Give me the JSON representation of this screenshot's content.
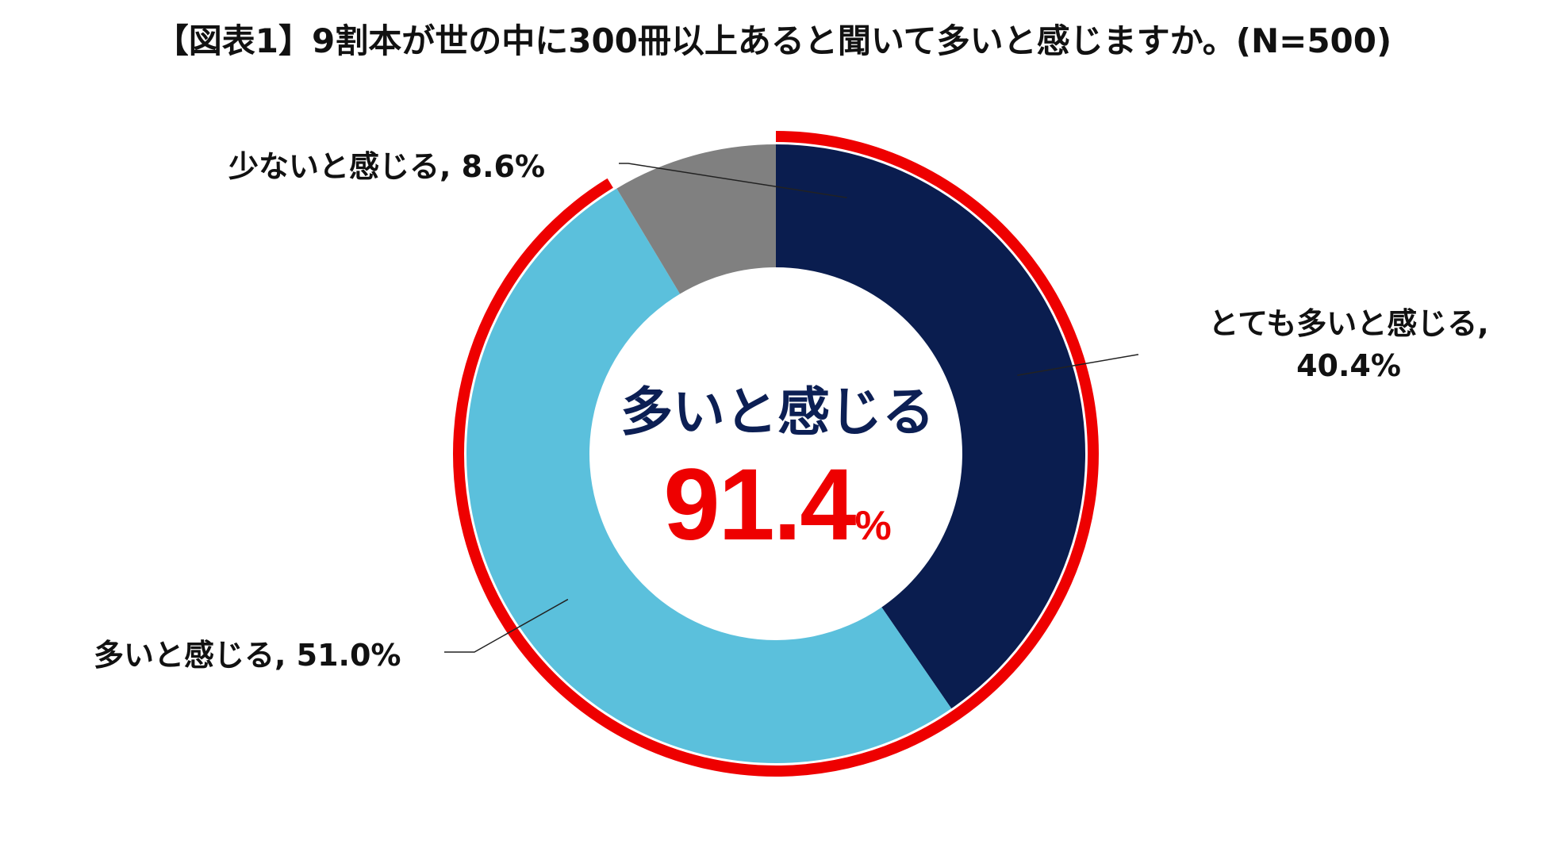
{
  "chart_data": {
    "type": "pie",
    "title": "【図表1】9割本が世の中に300冊以上あると聞いて多いと感じますか。(N=500)",
    "slices": [
      {
        "name": "とても多いと感じる",
        "label_line1": "とても多いと感じる,",
        "label_line2": "40.4%",
        "value": 40.4,
        "color": "#0a1d4f"
      },
      {
        "name": "多いと感じる",
        "label": "多いと感じる, 51.0%",
        "value": 51.0,
        "color": "#5bc0dc"
      },
      {
        "name": "少ないと感じる",
        "label": "少ないと感じる, 8.6%",
        "value": 8.6,
        "color": "#808080"
      }
    ],
    "highlight": {
      "label": "多いと感じる",
      "value_num": "91.4",
      "value_unit": "%",
      "covers": [
        "とても多いと感じる",
        "多いと感じる"
      ],
      "ring_color": "#ee0000"
    }
  }
}
